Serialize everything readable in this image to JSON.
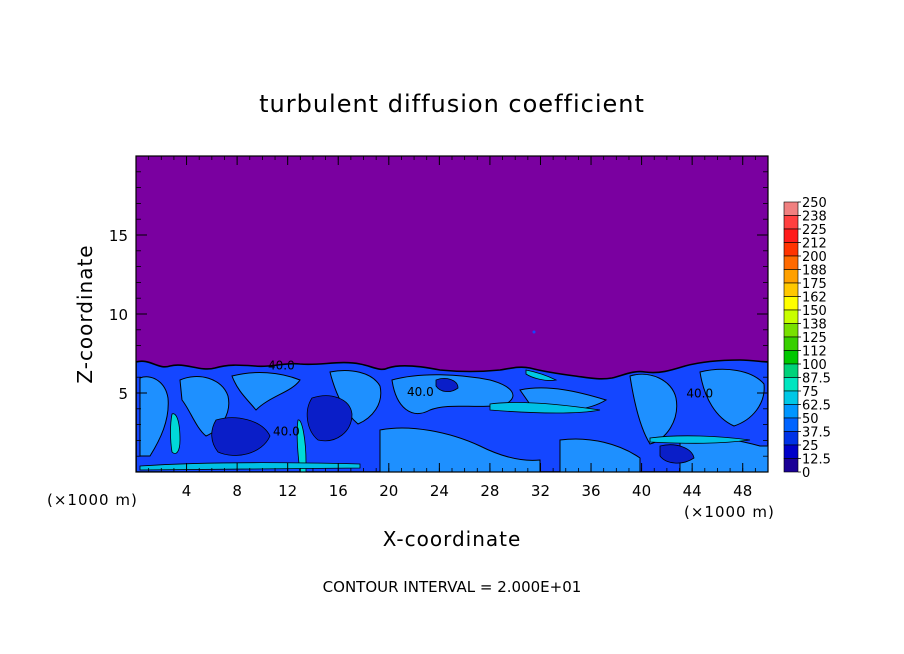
{
  "chart_data": {
    "type": "heatmap",
    "title": "turbulent diffusion coefficient",
    "xlabel": "X-coordinate",
    "ylabel": "Z-coordinate",
    "x_unit_left": "(×1000 m)",
    "x_unit_right": "(×1000 m)",
    "xlim": [
      0,
      50
    ],
    "ylim": [
      0,
      20
    ],
    "x_ticks": [
      "4",
      "8",
      "12",
      "16",
      "20",
      "24",
      "28",
      "32",
      "36",
      "40",
      "44",
      "48"
    ],
    "y_ticks": [
      "5",
      "10",
      "15"
    ],
    "contour_interval_text": "CONTOUR INTERVAL = 2.000E+01",
    "contour_labels": [
      {
        "text": "40.0",
        "x": 11.5,
        "z": 6.5
      },
      {
        "text": "40.0",
        "x": 11.9,
        "z": 2.3
      },
      {
        "text": "40.0",
        "x": 22.5,
        "z": 4.8
      },
      {
        "text": "40.0",
        "x": 44.6,
        "z": 4.7
      }
    ],
    "colorbar": {
      "levels": [
        "250",
        "238",
        "225",
        "212",
        "200",
        "188",
        "175",
        "162",
        "150",
        "138",
        "125",
        "112",
        "100",
        "87.5",
        "75",
        "62.5",
        "50",
        "37.5",
        "25",
        "12.5",
        "0"
      ],
      "colors": [
        "#f08080",
        "#ff4040",
        "#ff1a1a",
        "#ff3300",
        "#ff6a00",
        "#ffa000",
        "#ffc800",
        "#ffff00",
        "#c8ff00",
        "#78e000",
        "#38d000",
        "#00c800",
        "#00d27a",
        "#00e6c0",
        "#00c8e6",
        "#0096ff",
        "#0064ff",
        "#0032e6",
        "#0000c8",
        "#1a0096"
      ],
      "bottom_color": "#7a00a0"
    },
    "field": {
      "background_color": "#7a00a0",
      "boundary_layer_top_km": 7,
      "dominant_values": "about 50 near the surface, 0 above about 7 km"
    }
  }
}
